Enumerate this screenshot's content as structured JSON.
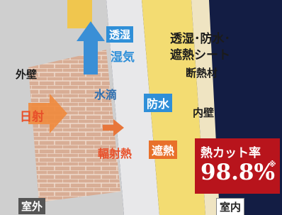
{
  "labels": {
    "moisture_tag": "透湿",
    "moisture": "湿気",
    "sheet_line1": "透湿･防水･",
    "sheet_line2": "遮熱シート",
    "outer_wall": "外壁",
    "insulation": "断熱材",
    "water_drops": "水滴",
    "waterproof_tag": "防水",
    "inner_wall": "内壁",
    "sunlight": "日射",
    "radiant_heat": "輻射熱",
    "heat_shield_tag": "遮熱",
    "outdoor": "室外",
    "indoor": "室内"
  },
  "badge": {
    "title": "熱カット率",
    "value": "98.8%",
    "note": "※"
  }
}
